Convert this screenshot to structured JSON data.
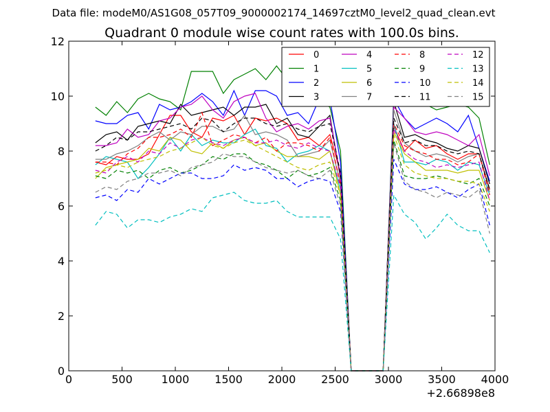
{
  "page": {
    "suptitle": "Data file: modeM0/AS1G08_057T09_9000002174_14697cztM0_level2_quad_clean.evt"
  },
  "chart_data": {
    "type": "line",
    "title": "Quadrant 0 module wise count rates with 100.0s bins.",
    "xlabel": "",
    "ylabel": "",
    "x_offset_label": "+2.66898e8",
    "xlim": [
      0,
      4000
    ],
    "ylim": [
      0,
      12
    ],
    "x_ticks": [
      {
        "value": 0,
        "label": "0"
      },
      {
        "value": 500,
        "label": "500"
      },
      {
        "value": 1000,
        "label": "1000"
      },
      {
        "value": 1500,
        "label": "1500"
      },
      {
        "value": 2000,
        "label": "2000"
      },
      {
        "value": 2500,
        "label": "2500"
      },
      {
        "value": 3000,
        "label": "3000"
      },
      {
        "value": 3500,
        "label": "3500"
      },
      {
        "value": 4000,
        "label": "4000"
      }
    ],
    "y_ticks": [
      {
        "value": 0,
        "label": "0"
      },
      {
        "value": 2,
        "label": "2"
      },
      {
        "value": 4,
        "label": "4"
      },
      {
        "value": 6,
        "label": "6"
      },
      {
        "value": 8,
        "label": "8"
      },
      {
        "value": 10,
        "label": "10"
      },
      {
        "value": 12,
        "label": "12"
      }
    ],
    "legend_columns": 4,
    "legend_position": "top-right",
    "x": [
      250,
      350,
      450,
      550,
      650,
      750,
      850,
      950,
      1050,
      1150,
      1250,
      1350,
      1450,
      1550,
      1650,
      1750,
      1850,
      1950,
      2050,
      2150,
      2250,
      2350,
      2450,
      2550,
      2650,
      2750,
      2850,
      2950,
      3050,
      3150,
      3250,
      3350,
      3450,
      3550,
      3650,
      3750,
      3850,
      3950
    ],
    "series": [
      {
        "name": "0",
        "color": "#ff0000",
        "dash": "solid",
        "values": [
          7.6,
          7.5,
          7.8,
          7.7,
          7.7,
          7.9,
          8.6,
          9.3,
          9.3,
          8.7,
          8.5,
          9.2,
          9.1,
          9.3,
          8.6,
          9.2,
          9.1,
          9.2,
          9.0,
          8.4,
          8.5,
          8.2,
          8.6,
          7.2,
          0,
          0,
          0,
          0,
          8.9,
          8.0,
          8.4,
          8.1,
          8.2,
          7.9,
          7.7,
          7.9,
          7.9,
          6.6
        ]
      },
      {
        "name": "1",
        "color": "#008000",
        "dash": "solid",
        "values": [
          9.6,
          9.3,
          9.8,
          9.4,
          9.9,
          10.1,
          9.9,
          9.8,
          9.5,
          10.9,
          10.9,
          10.9,
          10.1,
          10.6,
          10.8,
          11.0,
          10.6,
          11.1,
          10.6,
          10.0,
          9.9,
          9.8,
          9.6,
          8.0,
          0,
          0,
          0,
          0,
          10.0,
          9.8,
          9.8,
          9.7,
          9.5,
          9.6,
          9.7,
          9.6,
          9.2,
          7.5
        ]
      },
      {
        "name": "2",
        "color": "#0000ff",
        "dash": "solid",
        "values": [
          9.1,
          9.0,
          9.0,
          9.3,
          9.4,
          8.8,
          9.7,
          9.5,
          9.6,
          9.8,
          10.1,
          9.8,
          9.3,
          10.2,
          9.3,
          10.2,
          10.2,
          10.0,
          9.3,
          9.4,
          9.0,
          9.9,
          9.9,
          7.6,
          0,
          0,
          0,
          0,
          9.9,
          9.2,
          8.8,
          9.0,
          9.2,
          9.0,
          8.7,
          9.3,
          8.1,
          6.9
        ]
      },
      {
        "name": "3",
        "color": "#000000",
        "dash": "solid",
        "values": [
          8.3,
          8.6,
          8.7,
          8.4,
          8.9,
          9.0,
          9.1,
          9.0,
          9.7,
          9.3,
          9.4,
          9.5,
          9.6,
          9.3,
          9.6,
          9.6,
          9.7,
          9.0,
          9.2,
          8.6,
          8.5,
          8.9,
          9.3,
          7.0,
          0,
          0,
          0,
          0,
          9.8,
          8.5,
          8.6,
          8.4,
          8.3,
          8.1,
          8.0,
          8.2,
          8.1,
          6.8
        ]
      },
      {
        "name": "4",
        "color": "#bf00bf",
        "dash": "solid",
        "values": [
          8.2,
          8.2,
          8.3,
          8.8,
          8.5,
          8.6,
          9.1,
          9.2,
          9.6,
          9.7,
          10.0,
          9.5,
          9.2,
          9.8,
          10.0,
          10.1,
          9.2,
          8.7,
          8.9,
          9.0,
          8.8,
          9.1,
          9.2,
          7.1,
          0,
          0,
          0,
          0,
          9.6,
          9.2,
          8.7,
          8.6,
          8.7,
          8.6,
          8.4,
          8.2,
          8.6,
          7.1
        ]
      },
      {
        "name": "5",
        "color": "#00bfbf",
        "dash": "solid",
        "values": [
          7.5,
          7.8,
          7.7,
          7.6,
          7.0,
          7.4,
          7.9,
          8.5,
          8.0,
          8.6,
          8.2,
          8.4,
          8.3,
          8.3,
          8.6,
          8.8,
          8.2,
          8.1,
          7.6,
          7.9,
          8.0,
          8.2,
          8.0,
          6.6,
          0,
          0,
          0,
          0,
          9.0,
          7.6,
          7.6,
          7.5,
          7.7,
          7.6,
          7.3,
          7.6,
          7.5,
          6.4
        ]
      },
      {
        "name": "6",
        "color": "#bfbf00",
        "dash": "solid",
        "values": [
          7.0,
          7.4,
          7.5,
          7.6,
          7.7,
          8.1,
          8.0,
          8.5,
          8.4,
          8.0,
          7.9,
          8.3,
          8.1,
          8.4,
          8.5,
          8.2,
          8.3,
          8.0,
          7.8,
          7.8,
          7.8,
          7.7,
          8.0,
          6.4,
          0,
          0,
          0,
          0,
          8.7,
          7.9,
          7.6,
          7.3,
          7.3,
          7.3,
          7.2,
          7.3,
          7.3,
          6.2
        ]
      },
      {
        "name": "7",
        "color": "#808080",
        "dash": "solid",
        "values": [
          7.7,
          7.7,
          7.9,
          8.0,
          8.2,
          8.5,
          8.7,
          8.4,
          8.7,
          8.6,
          8.9,
          8.9,
          8.7,
          8.8,
          9.3,
          8.6,
          8.7,
          8.6,
          8.4,
          7.8,
          7.9,
          8.0,
          8.4,
          6.8,
          0,
          0,
          0,
          0,
          9.5,
          8.3,
          8.0,
          7.8,
          7.9,
          7.8,
          7.6,
          7.8,
          7.9,
          6.5
        ]
      },
      {
        "name": "8",
        "color": "#ff0000",
        "dash": "dashed",
        "values": [
          7.6,
          7.6,
          7.5,
          7.9,
          8.1,
          8.5,
          8.5,
          8.6,
          8.8,
          8.5,
          9.4,
          8.2,
          8.4,
          8.6,
          8.5,
          8.3,
          8.5,
          8.0,
          8.3,
          8.3,
          8.2,
          8.0,
          8.5,
          6.8,
          0,
          0,
          0,
          0,
          9.0,
          8.2,
          8.0,
          7.9,
          7.7,
          7.7,
          7.5,
          7.6,
          7.9,
          6.4
        ]
      },
      {
        "name": "9",
        "color": "#008000",
        "dash": "dashed",
        "values": [
          7.1,
          7.0,
          7.3,
          7.2,
          7.3,
          7.0,
          7.3,
          7.4,
          7.2,
          7.3,
          7.5,
          7.8,
          7.7,
          7.9,
          7.9,
          7.6,
          7.5,
          7.3,
          7.0,
          7.3,
          7.1,
          7.2,
          7.4,
          6.2,
          0,
          0,
          0,
          0,
          8.4,
          7.1,
          7.0,
          7.0,
          7.1,
          7.0,
          6.9,
          6.8,
          7.0,
          6.0
        ]
      },
      {
        "name": "10",
        "color": "#0000ff",
        "dash": "dashed",
        "values": [
          6.3,
          6.4,
          6.2,
          6.6,
          6.5,
          7.0,
          6.8,
          7.0,
          7.2,
          7.2,
          7.0,
          7.0,
          7.1,
          7.5,
          7.3,
          7.4,
          7.3,
          7.0,
          7.0,
          6.7,
          6.9,
          7.0,
          6.9,
          5.8,
          0,
          0,
          0,
          0,
          7.7,
          6.8,
          6.6,
          6.6,
          6.7,
          6.5,
          6.3,
          6.6,
          6.8,
          5.3
        ]
      },
      {
        "name": "11",
        "color": "#000000",
        "dash": "dashed",
        "values": [
          8.0,
          8.2,
          8.5,
          8.4,
          8.7,
          8.7,
          8.8,
          8.9,
          9.0,
          8.8,
          9.2,
          9.1,
          8.7,
          9.0,
          9.2,
          9.2,
          9.0,
          8.9,
          9.0,
          8.8,
          8.7,
          8.9,
          9.0,
          7.2,
          0,
          0,
          0,
          0,
          9.2,
          8.3,
          8.4,
          8.2,
          8.2,
          8.0,
          7.9,
          8.0,
          7.9,
          6.6
        ]
      },
      {
        "name": "12",
        "color": "#bf00bf",
        "dash": "dashed",
        "values": [
          7.3,
          7.2,
          7.6,
          7.8,
          7.6,
          8.0,
          7.9,
          8.3,
          8.1,
          8.4,
          8.5,
          8.3,
          8.2,
          8.4,
          8.5,
          8.3,
          8.3,
          8.4,
          8.2,
          8.1,
          8.3,
          8.1,
          8.0,
          6.7,
          0,
          0,
          0,
          0,
          8.8,
          8.0,
          7.7,
          7.6,
          7.4,
          7.5,
          7.4,
          7.5,
          7.6,
          6.2
        ]
      },
      {
        "name": "13",
        "color": "#00bfbf",
        "dash": "dashed",
        "values": [
          5.3,
          5.8,
          5.7,
          5.2,
          5.5,
          5.5,
          5.4,
          5.6,
          5.7,
          5.9,
          5.8,
          6.3,
          6.4,
          6.5,
          6.2,
          6.1,
          6.1,
          6.2,
          5.8,
          5.6,
          5.6,
          5.6,
          5.6,
          4.8,
          0,
          0,
          0,
          0,
          6.4,
          5.7,
          5.4,
          4.8,
          5.2,
          5.7,
          5.3,
          5.1,
          5.1,
          4.3
        ]
      },
      {
        "name": "14",
        "color": "#bfbf00",
        "dash": "dashed",
        "values": [
          7.2,
          7.3,
          7.5,
          7.4,
          7.6,
          7.7,
          7.8,
          8.0,
          8.1,
          8.3,
          8.5,
          8.2,
          8.1,
          8.3,
          8.4,
          8.2,
          8.0,
          7.8,
          7.6,
          7.4,
          7.3,
          7.5,
          7.6,
          6.4,
          0,
          0,
          0,
          0,
          8.6,
          7.5,
          7.2,
          7.1,
          7.0,
          7.0,
          6.9,
          6.9,
          6.8,
          5.8
        ]
      },
      {
        "name": "15",
        "color": "#808080",
        "dash": "dashed",
        "values": [
          6.5,
          6.7,
          6.6,
          6.9,
          7.0,
          7.2,
          7.2,
          7.3,
          7.1,
          7.4,
          7.5,
          7.6,
          7.9,
          7.8,
          7.8,
          7.6,
          7.4,
          7.3,
          7.2,
          7.3,
          7.1,
          7.0,
          7.3,
          6.0,
          0,
          0,
          0,
          0,
          8.3,
          6.9,
          6.6,
          6.5,
          6.3,
          6.5,
          6.4,
          6.3,
          6.6,
          5.0
        ]
      }
    ]
  }
}
